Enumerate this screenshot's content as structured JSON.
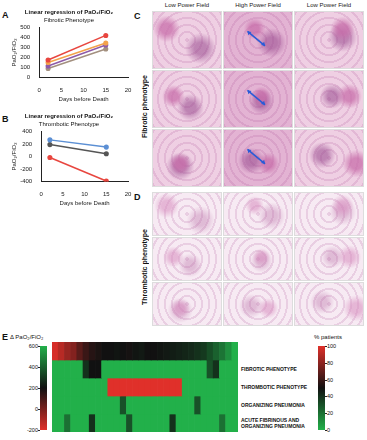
{
  "chart_data": [
    {
      "panel": "A",
      "type": "line",
      "title": "Linear regression of PaO₂/FiO₂",
      "subtitle": "Fibrotic Phenotype",
      "x_label": "Days before Death",
      "y_label": "PaO₂/FiO₂",
      "x": [
        2,
        15
      ],
      "xlim": [
        0,
        20
      ],
      "xticks": [
        0,
        5,
        10,
        15,
        20
      ],
      "ylim": [
        0,
        500
      ],
      "yticks": [
        0,
        100,
        200,
        300,
        400,
        500
      ],
      "grid": false,
      "marker": "circle",
      "series": [
        {
          "color": "#e8463f",
          "values": [
            175,
            420
          ]
        },
        {
          "color": "#f3a24b",
          "values": [
            150,
            345
          ]
        },
        {
          "color": "#8d5aa8",
          "values": [
            115,
            325
          ]
        },
        {
          "color": "#a3907f",
          "values": [
            90,
            285
          ]
        }
      ]
    },
    {
      "panel": "B",
      "type": "line",
      "title": "Linear regression of PaO₂/FiO₂",
      "subtitle": "Thrombotic Phenotype",
      "x_label": "Days before Death",
      "y_label": "PaO₂/FiO₂",
      "x": [
        2,
        15
      ],
      "xlim": [
        0,
        20
      ],
      "xticks": [
        0,
        5,
        10,
        15,
        20
      ],
      "ylim": [
        -400,
        400
      ],
      "yticks": [
        -400,
        -200,
        0,
        200,
        400
      ],
      "grid": false,
      "marker": "circle",
      "series": [
        {
          "color": "#5b8fd4",
          "values": [
            265,
            150
          ]
        },
        {
          "color": "#555555",
          "values": [
            190,
            45
          ]
        },
        {
          "color": "#e8463f",
          "values": [
            -15,
            -390
          ]
        }
      ]
    },
    {
      "panel": "E",
      "type": "heatmap",
      "tick_labels": false,
      "delta_row": {
        "values": [
          -180,
          -120,
          -60,
          -20,
          60,
          120,
          160,
          180,
          200,
          200,
          210,
          200,
          190,
          210,
          220,
          200,
          200,
          210,
          220,
          230,
          240,
          250,
          260,
          280,
          300,
          350,
          400,
          450,
          520,
          600
        ]
      },
      "phenotype_rows": [
        {
          "label": "FIBROTIC PHENOTYPE",
          "values": [
            0,
            0,
            0,
            0,
            0,
            40,
            50,
            50,
            0,
            0,
            0,
            0,
            0,
            0,
            0,
            0,
            0,
            0,
            0,
            0,
            0,
            0,
            0,
            0,
            0,
            30,
            40,
            0,
            0,
            0
          ]
        },
        {
          "label": "THROMBOTIC PHENOTYPE",
          "values": [
            0,
            0,
            0,
            0,
            0,
            0,
            0,
            0,
            0,
            100,
            100,
            100,
            100,
            100,
            100,
            100,
            100,
            100,
            100,
            100,
            100,
            0,
            0,
            0,
            0,
            0,
            0,
            0,
            0,
            0
          ]
        },
        {
          "label": "ORGANIZING PNEUMONIA",
          "values": [
            0,
            0,
            0,
            0,
            0,
            0,
            0,
            0,
            0,
            0,
            0,
            30,
            0,
            0,
            0,
            0,
            0,
            0,
            0,
            0,
            0,
            0,
            0,
            30,
            0,
            0,
            0,
            0,
            0,
            0
          ]
        },
        {
          "label": "ACUTE FIBRINOUS AND ORGANIZING PNEUMONIA",
          "values": [
            0,
            0,
            20,
            0,
            0,
            0,
            40,
            0,
            0,
            0,
            0,
            0,
            30,
            0,
            0,
            0,
            0,
            0,
            0,
            40,
            0,
            0,
            0,
            0,
            0,
            0,
            0,
            20,
            0,
            0
          ]
        }
      ],
      "delta_colorbar": {
        "label": "Δ PaO₂/FiO₂",
        "range": [
          -200,
          600
        ],
        "ticks": [
          600,
          400,
          200,
          0,
          -200
        ]
      },
      "percent_colorbar": {
        "label": "% patients",
        "range": [
          0,
          100
        ],
        "ticks": [
          100,
          80,
          60,
          40,
          20,
          0
        ]
      }
    }
  ],
  "histology": {
    "column_heads": [
      "Low Power Field",
      "High Power Field",
      "Low Power Field"
    ],
    "panels": [
      {
        "panel": "C",
        "label": "Fibrotic phenotype"
      },
      {
        "panel": "D",
        "label": "Thrombotic phenotype"
      }
    ]
  }
}
